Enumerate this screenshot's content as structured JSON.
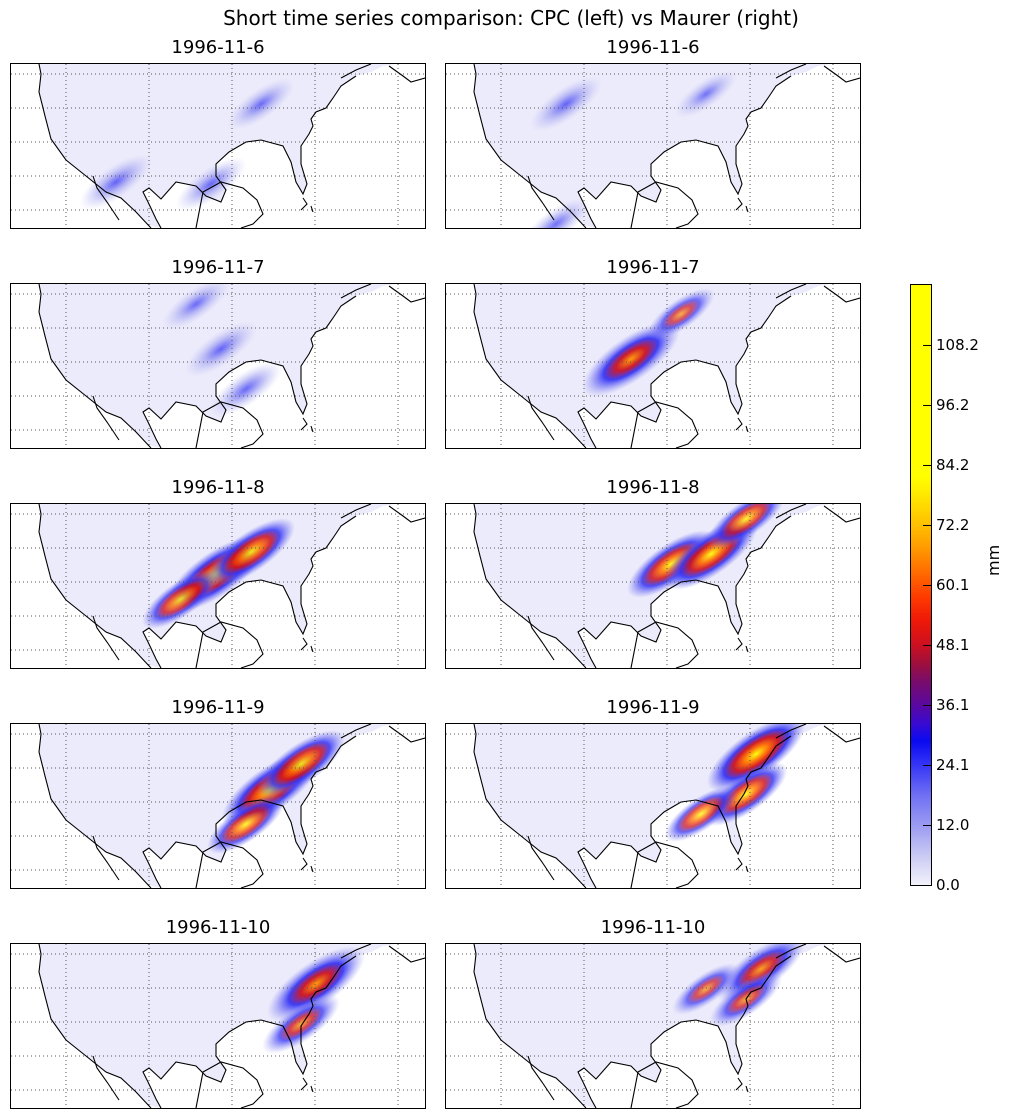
{
  "figure": {
    "suptitle": "Short time series comparison: CPC (left) vs Maurer (right)"
  },
  "panels": [
    {
      "title": "1996-11-6",
      "dataset": "CPC",
      "intensity": "light",
      "rain": [
        [
          105,
          118,
          0.5
        ],
        [
          200,
          120,
          0.45
        ],
        [
          250,
          40,
          0.4
        ]
      ]
    },
    {
      "title": "1996-11-6",
      "dataset": "Maurer",
      "intensity": "light",
      "rain": [
        [
          120,
          40,
          0.5
        ],
        [
          110,
          160,
          0.4
        ],
        [
          260,
          30,
          0.3
        ]
      ]
    },
    {
      "title": "1996-11-7",
      "dataset": "CPC",
      "intensity": "light",
      "rain": [
        [
          210,
          65,
          0.5
        ],
        [
          185,
          20,
          0.4
        ],
        [
          235,
          105,
          0.5
        ]
      ]
    },
    {
      "title": "1996-11-7",
      "dataset": "Maurer",
      "intensity": "moderate",
      "rain": [
        [
          185,
          75,
          1.0
        ],
        [
          235,
          30,
          0.4
        ]
      ]
    },
    {
      "title": "1996-11-8",
      "dataset": "CPC",
      "intensity": "heavy",
      "rain": [
        [
          205,
          70,
          1.0
        ],
        [
          240,
          48,
          0.8
        ],
        [
          170,
          95,
          0.6
        ]
      ]
    },
    {
      "title": "1996-11-8",
      "dataset": "Maurer",
      "intensity": "heavy",
      "rain": [
        [
          225,
          60,
          0.8
        ],
        [
          265,
          50,
          0.9
        ],
        [
          300,
          15,
          0.6
        ]
      ]
    },
    {
      "title": "1996-11-9",
      "dataset": "CPC",
      "intensity": "heavy",
      "rain": [
        [
          260,
          65,
          1.0
        ],
        [
          290,
          40,
          0.8
        ],
        [
          235,
          100,
          0.6
        ]
      ]
    },
    {
      "title": "1996-11-9",
      "dataset": "Maurer",
      "intensity": "heavy",
      "rain": [
        [
          310,
          30,
          1.0
        ],
        [
          300,
          70,
          0.7
        ],
        [
          255,
          90,
          0.5
        ]
      ]
    },
    {
      "title": "1996-11-10",
      "dataset": "CPC",
      "intensity": "moderate",
      "rain": [
        [
          305,
          40,
          1.0
        ],
        [
          290,
          80,
          0.6
        ]
      ]
    },
    {
      "title": "1996-11-10",
      "dataset": "Maurer",
      "intensity": "moderate",
      "rain": [
        [
          315,
          25,
          0.8
        ],
        [
          300,
          55,
          0.5
        ],
        [
          260,
          45,
          0.4
        ]
      ]
    }
  ],
  "colorbar": {
    "label": "mm",
    "range": [
      0.0,
      120.2
    ],
    "ticks": [
      "0.0",
      "12.0",
      "24.1",
      "36.1",
      "48.1",
      "60.1",
      "72.2",
      "84.2",
      "96.2",
      "108.2"
    ],
    "tick_values": [
      0.0,
      12.0,
      24.1,
      36.1,
      48.1,
      60.1,
      72.2,
      84.2,
      96.2,
      108.2
    ],
    "colormap": [
      "#f2f2fb",
      "#9a9af2",
      "#0a0af0",
      "#7a0c6a",
      "#ee1808",
      "#ff9800",
      "#ffff00"
    ]
  },
  "colors": {
    "land_fill": "#ecebfb",
    "coast": "#000000",
    "grid": "#555555"
  }
}
